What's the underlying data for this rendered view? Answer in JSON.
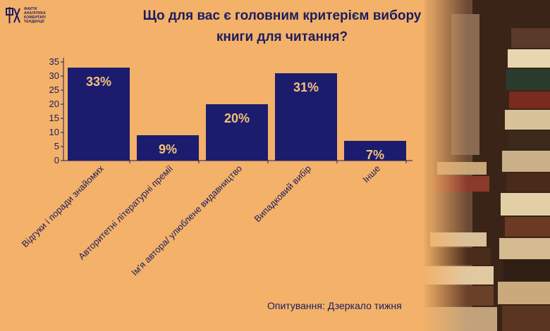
{
  "logo": {
    "mark": "ФАКТ",
    "lines": [
      "ФАКТИ",
      "АНАЛІТИКА",
      "КОМЕНТАРІ",
      "ТЕНДЕНЦІЇ"
    ]
  },
  "title_line1": "Що для вас є головним критерієм вибору",
  "title_line2": "книги для читання?",
  "source": "Опитування: Дзеркало тижня",
  "colors": {
    "background": "#f3b169",
    "bar": "#1c1c6e",
    "bar_label": "#f3c27a",
    "text": "#1c1c5e"
  },
  "chart_data": {
    "type": "bar",
    "title": "Що для вас є головним критерієм вибору книги для читання?",
    "categories": [
      "Відгуки і поради знайомих",
      "Авторитетні літературні премії",
      "Ім'я автора/ улюблене видавництво",
      "Випадковий вибір",
      "Інше"
    ],
    "values": [
      33,
      9,
      20,
      31,
      7
    ],
    "data_labels": [
      "33%",
      "9%",
      "20%",
      "31%",
      "7%"
    ],
    "ylim": [
      0,
      35
    ],
    "yticks": [
      0,
      5,
      10,
      15,
      20,
      25,
      30,
      35
    ],
    "grid": false,
    "legend": "none"
  }
}
